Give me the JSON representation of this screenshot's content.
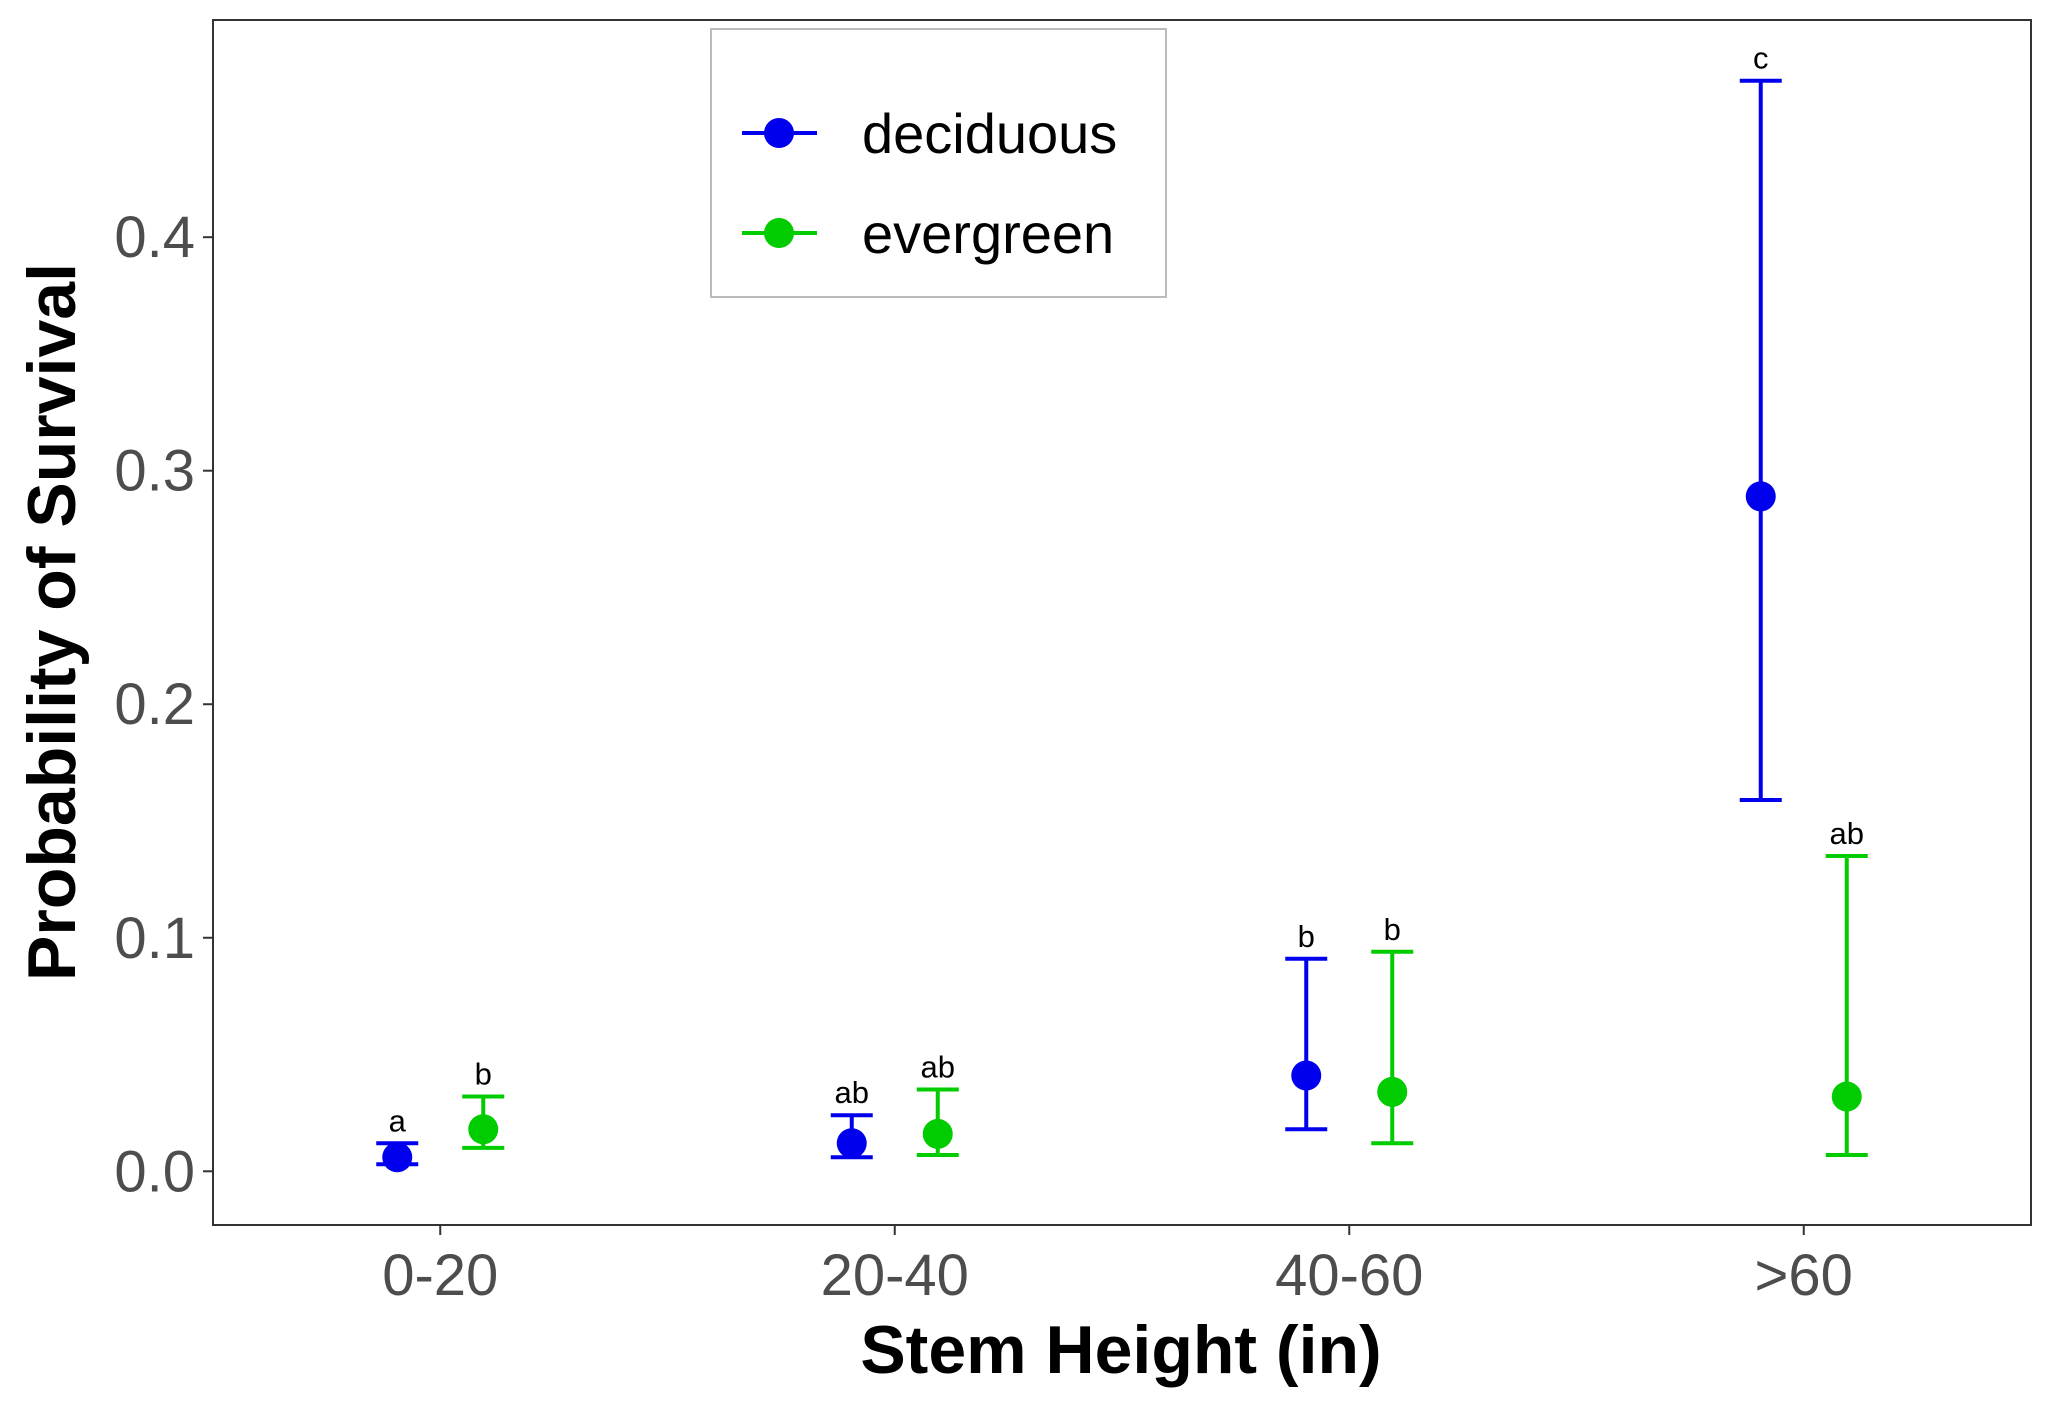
{
  "chart_data": {
    "type": "scatter",
    "title": "",
    "xlabel": "Stem Height (in)",
    "ylabel": "Probability of Survival",
    "categories": [
      "0-20",
      "20-40",
      "40-60",
      ">60"
    ],
    "ylim": [
      -0.023,
      0.493
    ],
    "yticks": [
      0.0,
      0.1,
      0.2,
      0.3,
      0.4
    ],
    "ytick_labels": [
      "0.0",
      "0.1",
      "0.2",
      "0.3",
      "0.4"
    ],
    "grid": false,
    "legend": {
      "position": "top-left",
      "entries": [
        "deciduous",
        "evergreen"
      ]
    },
    "series": [
      {
        "name": "deciduous",
        "color": "#0000ee",
        "values": [
          0.006,
          0.012,
          0.041,
          0.289
        ],
        "lower": [
          0.003,
          0.006,
          0.018,
          0.159
        ],
        "upper": [
          0.012,
          0.024,
          0.091,
          0.467
        ],
        "letters": [
          "a",
          "ab",
          "b",
          "c"
        ]
      },
      {
        "name": "evergreen",
        "color": "#00cc00",
        "values": [
          0.018,
          0.016,
          0.034,
          0.032
        ],
        "lower": [
          0.01,
          0.007,
          0.012,
          0.007
        ],
        "upper": [
          0.032,
          0.035,
          0.094,
          0.135
        ],
        "letters": [
          "b",
          "ab",
          "b",
          "ab"
        ]
      }
    ]
  }
}
